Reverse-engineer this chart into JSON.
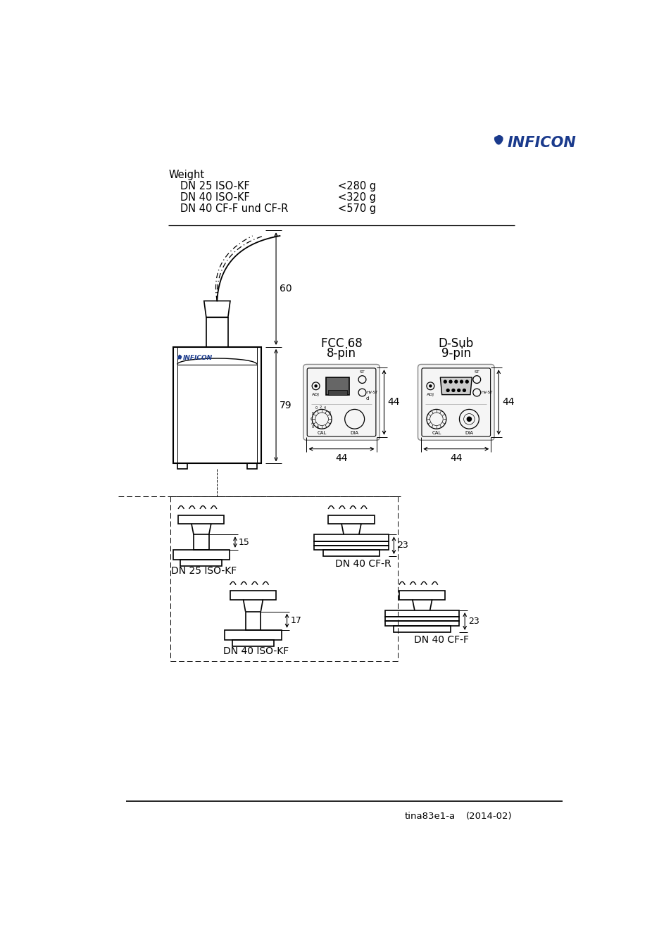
{
  "bg_color": "#ffffff",
  "text_color": "#000000",
  "inficon_blue": "#1a3a8c",
  "page_width": 9.54,
  "page_height": 13.48,
  "logo_text": "INFICON",
  "footer_text": "tina83e1-a",
  "footer_year": "(2014-02)",
  "weight_title": "Weight",
  "weight_rows": [
    [
      "DN 25 ISO-KF",
      "<280 g"
    ],
    [
      "DN 40 ISO-KF",
      "<320 g"
    ],
    [
      "DN 40 CF-F und CF-R",
      "<570 g"
    ]
  ],
  "fcc_label": "FCC 68",
  "fcc_sub": "8-pin",
  "dsub_label": "D-Sub",
  "dsub_sub": "9-pin",
  "dim_60": "60",
  "dim_79": "79",
  "dim_44_h1": "44",
  "dim_44_w1": "44",
  "dim_44_h2": "44",
  "dim_44_w2": "44",
  "dim_15": "15",
  "dim_17": "17",
  "dim_23a": "23",
  "dim_23b": "23",
  "label_dn25": "DN 25 ISO-KF",
  "label_dn40iso": "DN 40 ISO-KF",
  "label_dn40cfr": "DN 40 CF-R",
  "label_dn40cff": "DN 40 CF-F"
}
